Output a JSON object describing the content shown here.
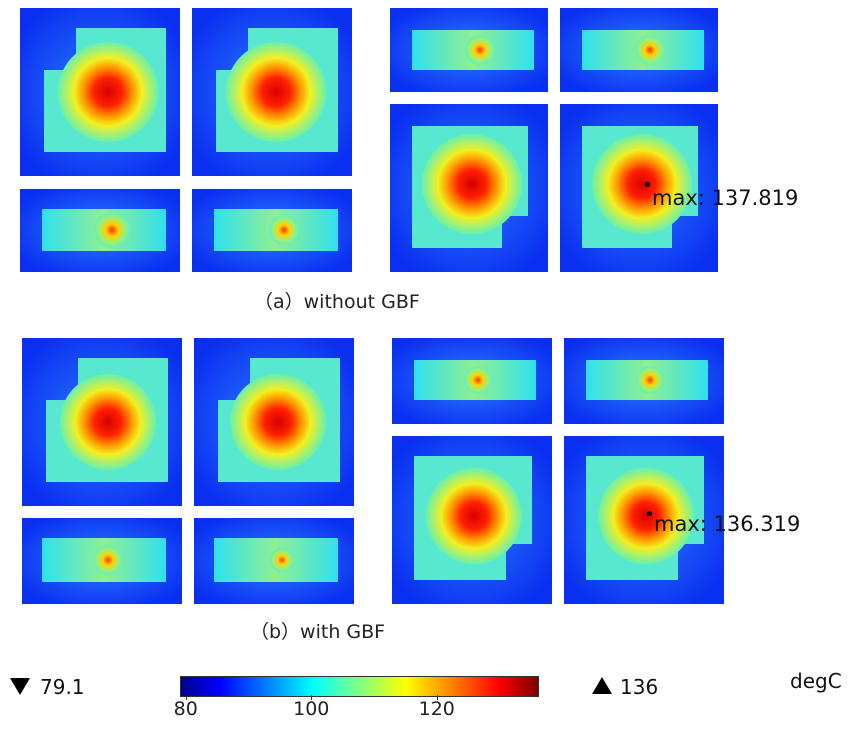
{
  "captions": {
    "a": "（a）without GBF",
    "b": "（b）with  GBF"
  },
  "max_labels": {
    "a": "max: 137.819",
    "b": "max: 136.319"
  },
  "colorbar": {
    "min_label": "79.1",
    "max_label": "136",
    "ticks": [
      "80",
      "100",
      "120"
    ],
    "tick_values": [
      80,
      100,
      120
    ],
    "range": [
      79.1,
      136
    ],
    "unit": "degC",
    "colormap": "jet",
    "min_icon": "triangle-down-icon",
    "max_icon": "triangle-up-icon"
  },
  "colors": {
    "background_blue": "#0a2ff0",
    "hotspot": "#ff0000"
  }
}
